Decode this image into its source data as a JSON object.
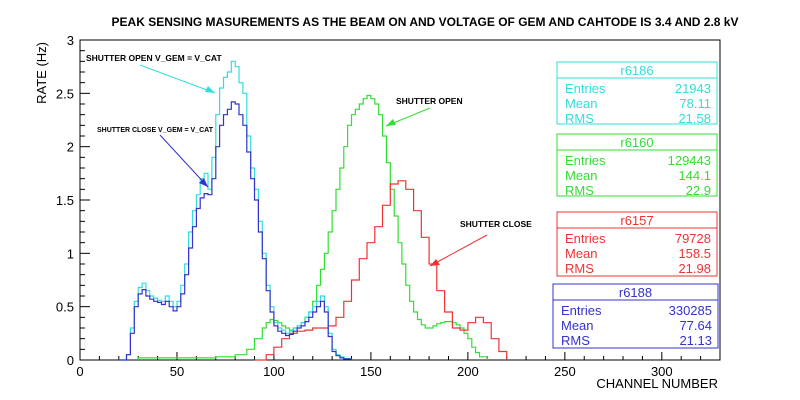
{
  "chart_data": {
    "type": "line",
    "title": "PEAK SENSING MASUREMENTS AS THE BEAM ON AND VOLTAGE OF GEM AND CAHTODE IS 3.4 AND 2.8 kV",
    "xlabel": "CHANNEL NUMBER",
    "ylabel": "RATE (Hz)",
    "xlim": [
      0,
      330
    ],
    "ylim": [
      0,
      3
    ],
    "xticks": [
      "0",
      "50",
      "100",
      "150",
      "200",
      "250",
      "300"
    ],
    "yticks": [
      "0",
      "0.5",
      "1",
      "1.5",
      "2",
      "2.5",
      "3"
    ],
    "series": [
      {
        "name": "r6186",
        "color": "#33dddd",
        "stats": {
          "entries": "21943",
          "mean": "78.11",
          "rms": "21.58"
        },
        "x": [
          20,
          24,
          26,
          28,
          30,
          32,
          34,
          36,
          38,
          40,
          42,
          44,
          46,
          48,
          50,
          52,
          54,
          56,
          58,
          60,
          62,
          64,
          66,
          68,
          70,
          72,
          74,
          76,
          78,
          80,
          82,
          84,
          86,
          88,
          90,
          92,
          94,
          96,
          98,
          100,
          102,
          104,
          106,
          108,
          110,
          112,
          114,
          116,
          118,
          120,
          122,
          124,
          126,
          128,
          130,
          132,
          134,
          136,
          140
        ],
        "y": [
          0,
          0.05,
          0.3,
          0.55,
          0.68,
          0.72,
          0.65,
          0.6,
          0.58,
          0.56,
          0.55,
          0.6,
          0.55,
          0.5,
          0.55,
          0.7,
          0.9,
          1.2,
          1.4,
          1.55,
          1.7,
          1.75,
          1.6,
          1.9,
          2.3,
          2.55,
          2.65,
          2.7,
          2.8,
          2.75,
          2.6,
          2.5,
          2.1,
          1.8,
          1.6,
          1.3,
          1.0,
          0.7,
          0.5,
          0.35,
          0.3,
          0.28,
          0.25,
          0.27,
          0.3,
          0.32,
          0.35,
          0.4,
          0.45,
          0.5,
          0.55,
          0.6,
          0.5,
          0.25,
          0.1,
          0.05,
          0.03,
          0.01,
          0
        ]
      },
      {
        "name": "r6160",
        "color": "#33dd33",
        "stats": {
          "entries": "129443",
          "mean": "144.1",
          "rms": "22.9"
        },
        "x": [
          30,
          60,
          70,
          80,
          86,
          90,
          94,
          96,
          98,
          100,
          102,
          104,
          106,
          108,
          110,
          112,
          114,
          116,
          118,
          120,
          122,
          124,
          126,
          128,
          130,
          132,
          134,
          136,
          138,
          140,
          142,
          144,
          146,
          148,
          150,
          152,
          154,
          156,
          158,
          160,
          162,
          164,
          166,
          168,
          170,
          172,
          174,
          176,
          178,
          180,
          182,
          184,
          186,
          188,
          190,
          192,
          194,
          196,
          198,
          200,
          202,
          204,
          206,
          210
        ],
        "y": [
          0.02,
          0.02,
          0.03,
          0.05,
          0.1,
          0.2,
          0.3,
          0.35,
          0.38,
          0.37,
          0.35,
          0.32,
          0.3,
          0.28,
          0.3,
          0.32,
          0.35,
          0.4,
          0.45,
          0.55,
          0.7,
          0.85,
          1.0,
          1.2,
          1.4,
          1.6,
          1.8,
          2.0,
          2.2,
          2.3,
          2.35,
          2.4,
          2.45,
          2.48,
          2.45,
          2.4,
          2.3,
          2.1,
          1.85,
          1.6,
          1.35,
          1.1,
          0.9,
          0.7,
          0.55,
          0.45,
          0.38,
          0.33,
          0.3,
          0.3,
          0.32,
          0.34,
          0.35,
          0.36,
          0.36,
          0.35,
          0.33,
          0.3,
          0.25,
          0.2,
          0.12,
          0.07,
          0.03,
          0
        ]
      },
      {
        "name": "r6157",
        "color": "#ee3333",
        "stats": {
          "entries": "79728",
          "mean": "158.5",
          "rms": "21.98"
        },
        "x": [
          90,
          96,
          100,
          104,
          108,
          112,
          116,
          120,
          124,
          128,
          132,
          136,
          140,
          144,
          148,
          152,
          156,
          160,
          164,
          168,
          172,
          176,
          180,
          184,
          188,
          192,
          196,
          200,
          204,
          208,
          212,
          216,
          220
        ],
        "y": [
          0,
          0.05,
          0.12,
          0.2,
          0.25,
          0.27,
          0.28,
          0.3,
          0.3,
          0.32,
          0.4,
          0.55,
          0.75,
          0.95,
          1.1,
          1.25,
          1.45,
          1.65,
          1.68,
          1.6,
          1.4,
          1.15,
          0.9,
          0.65,
          0.45,
          0.3,
          0.28,
          0.35,
          0.4,
          0.35,
          0.2,
          0.08,
          0
        ]
      },
      {
        "name": "r6188",
        "color": "#3333cc",
        "stats": {
          "entries": "330285",
          "mean": "77.64",
          "rms": "21.13"
        },
        "x": [
          20,
          24,
          26,
          28,
          30,
          32,
          34,
          36,
          38,
          40,
          42,
          44,
          46,
          48,
          50,
          52,
          54,
          56,
          58,
          60,
          62,
          64,
          66,
          68,
          70,
          72,
          74,
          76,
          78,
          80,
          82,
          84,
          86,
          88,
          90,
          92,
          94,
          96,
          98,
          100,
          102,
          104,
          106,
          108,
          110,
          112,
          114,
          116,
          118,
          120,
          122,
          124,
          126,
          128,
          130,
          132,
          134,
          136,
          140
        ],
        "y": [
          0,
          0.05,
          0.25,
          0.5,
          0.62,
          0.66,
          0.6,
          0.57,
          0.55,
          0.54,
          0.52,
          0.55,
          0.5,
          0.46,
          0.5,
          0.62,
          0.8,
          1.05,
          1.25,
          1.42,
          1.52,
          1.56,
          1.55,
          1.7,
          2.0,
          2.2,
          2.3,
          2.35,
          2.42,
          2.4,
          2.3,
          2.2,
          1.95,
          1.7,
          1.5,
          1.2,
          0.95,
          0.65,
          0.45,
          0.32,
          0.27,
          0.25,
          0.23,
          0.24,
          0.27,
          0.3,
          0.32,
          0.36,
          0.4,
          0.45,
          0.5,
          0.55,
          0.45,
          0.22,
          0.08,
          0.04,
          0.02,
          0.01,
          0
        ]
      }
    ],
    "annotations": [
      "SHUTTER OPEN V_GEM = V_CAT",
      "SHUTTER CLOSE V_GEM = V_CAT",
      "SHUTTER OPEN",
      "SHUTTER CLOSE"
    ],
    "stat_labels": {
      "entries": "Entries",
      "mean": "Mean",
      "rms": "RMS"
    },
    "legend_placement": "right",
    "grid": false
  }
}
